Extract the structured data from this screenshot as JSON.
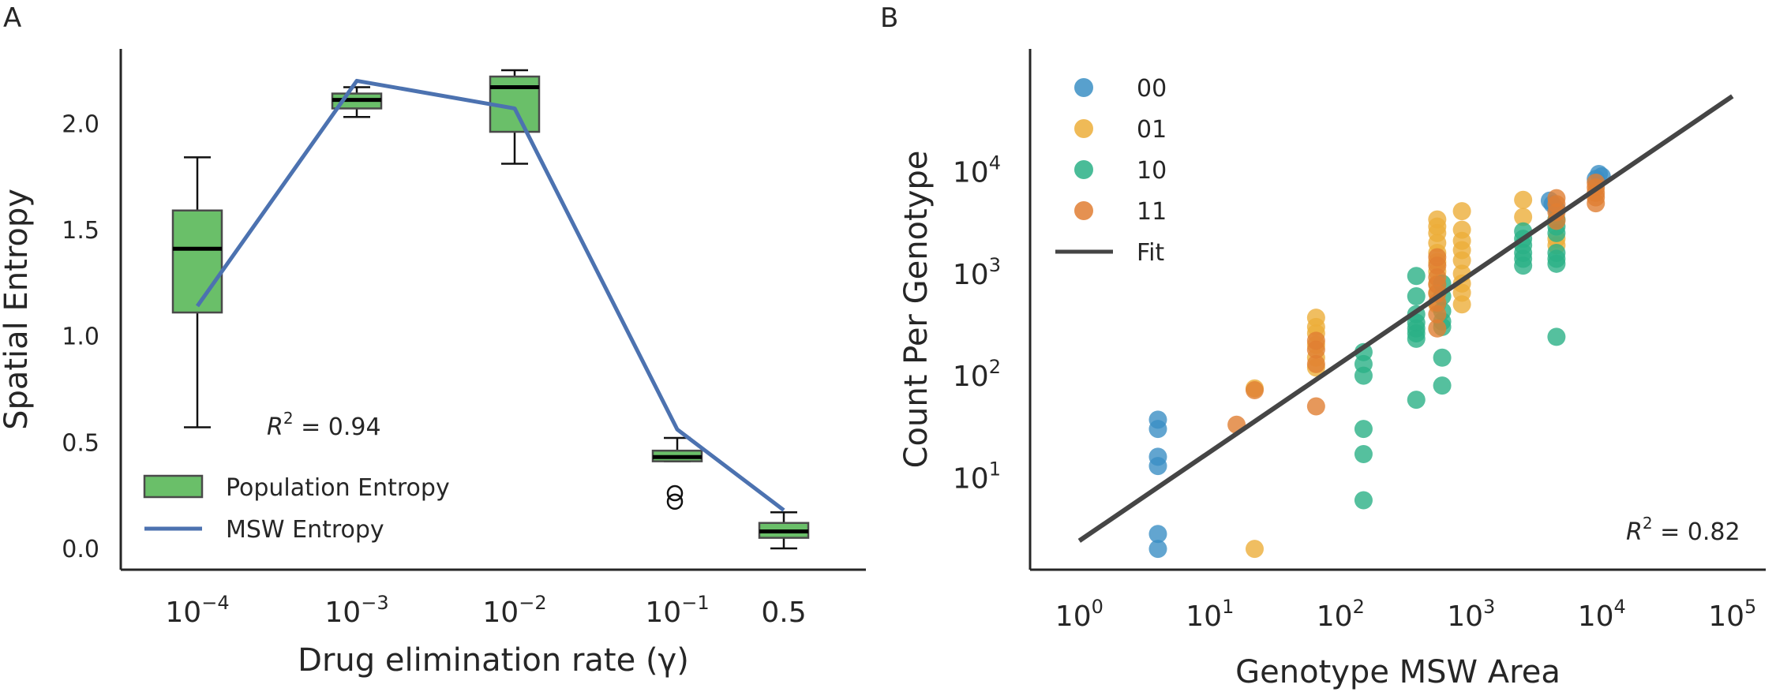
{
  "panel_labels": {
    "a": "A",
    "b": "B"
  },
  "chart_data": [
    {
      "type": "box",
      "panel": "A",
      "xlabel": "Drug elimination rate (γ)",
      "ylabel": "Spatial Entropy",
      "ylim": [
        -0.1,
        2.35
      ],
      "categories": [
        {
          "base": "10",
          "exp": "−4"
        },
        {
          "base": "10",
          "exp": "−3"
        },
        {
          "base": "10",
          "exp": "−2"
        },
        {
          "base": "10",
          "exp": "−1"
        },
        {
          "base": "0.5",
          "exp": ""
        }
      ],
      "yticks": [
        "0.0",
        "0.5",
        "1.0",
        "1.5",
        "2.0"
      ],
      "ytick_values": [
        0,
        0.5,
        1.0,
        1.5,
        2.0
      ],
      "boxes": [
        {
          "whislo": 0.57,
          "q1": 1.11,
          "med": 1.41,
          "q3": 1.59,
          "whishi": 1.84,
          "fliers": []
        },
        {
          "whislo": 2.03,
          "q1": 2.07,
          "med": 2.11,
          "q3": 2.14,
          "whishi": 2.17,
          "fliers": []
        },
        {
          "whislo": 1.81,
          "q1": 1.96,
          "med": 2.17,
          "q3": 2.22,
          "whishi": 2.25,
          "fliers": []
        },
        {
          "whislo": 0.41,
          "q1": 0.41,
          "med": 0.43,
          "q3": 0.46,
          "whishi": 0.52,
          "fliers": [
            0.22,
            0.26
          ]
        },
        {
          "whislo": 0.0,
          "q1": 0.05,
          "med": 0.08,
          "q3": 0.12,
          "whishi": 0.17,
          "fliers": []
        }
      ],
      "msw_line": [
        1.14,
        2.2,
        2.07,
        0.56,
        0.18
      ],
      "legend": {
        "box": "Population Entropy",
        "line": "MSW Entropy"
      },
      "annotation": {
        "prefix": "R",
        "sup": "2",
        "value": " = 0.94"
      },
      "colors": {
        "box": "#6abf69",
        "box_edge": "#4a4a4a",
        "line": "#4c72b0"
      }
    },
    {
      "type": "scatter",
      "panel": "B",
      "xlabel": "Genotype MSW Area",
      "ylabel": "Count Per Genotype",
      "xscale": "log",
      "yscale": "log",
      "xlim": [
        0.42,
        180000
      ],
      "ylim": [
        1.25,
        160000
      ],
      "xticks": [
        {
          "base": "10",
          "exp": "0",
          "v": 1
        },
        {
          "base": "10",
          "exp": "1",
          "v": 10
        },
        {
          "base": "10",
          "exp": "2",
          "v": 100
        },
        {
          "base": "10",
          "exp": "3",
          "v": 1000
        },
        {
          "base": "10",
          "exp": "4",
          "v": 10000
        },
        {
          "base": "10",
          "exp": "5",
          "v": 100000
        }
      ],
      "yticks": [
        {
          "base": "10",
          "exp": "1",
          "v": 10
        },
        {
          "base": "10",
          "exp": "2",
          "v": 100
        },
        {
          "base": "10",
          "exp": "3",
          "v": 1000
        },
        {
          "base": "10",
          "exp": "4",
          "v": 10000
        }
      ],
      "series": [
        {
          "name": "00",
          "color": "#3b8fc4",
          "points": [
            [
              4,
              37
            ],
            [
              4,
              30
            ],
            [
              4,
              16
            ],
            [
              4,
              13
            ],
            [
              4,
              2.8
            ],
            [
              4,
              2.0
            ],
            [
              4000,
              5200
            ],
            [
              4200,
              4800
            ],
            [
              4500,
              4300
            ],
            [
              9500,
              9500
            ],
            [
              10000,
              9000
            ],
            [
              9000,
              8500
            ]
          ]
        },
        {
          "name": "01",
          "color": "#ecae3a",
          "points": [
            [
              22,
              2.0
            ],
            [
              22,
              75
            ],
            [
              65,
              370
            ],
            [
              65,
              300
            ],
            [
              65,
              260
            ],
            [
              65,
              200
            ],
            [
              65,
              150
            ],
            [
              65,
              120
            ],
            [
              550,
              3400
            ],
            [
              550,
              2900
            ],
            [
              550,
              2500
            ],
            [
              550,
              2000
            ],
            [
              550,
              1600
            ],
            [
              550,
              1300
            ],
            [
              550,
              1050
            ],
            [
              550,
              800
            ],
            [
              550,
              650
            ],
            [
              550,
              500
            ],
            [
              850,
              4100
            ],
            [
              850,
              2700
            ],
            [
              850,
              2100
            ],
            [
              850,
              1700
            ],
            [
              850,
              1350
            ],
            [
              850,
              1000
            ],
            [
              850,
              800
            ],
            [
              850,
              650
            ],
            [
              850,
              500
            ],
            [
              2500,
              5300
            ],
            [
              2500,
              3600
            ],
            [
              4500,
              2200
            ],
            [
              4500,
              1900
            ]
          ]
        },
        {
          "name": "10",
          "color": "#2ab086",
          "points": [
            [
              150,
              170
            ],
            [
              150,
              130
            ],
            [
              150,
              100
            ],
            [
              150,
              30
            ],
            [
              150,
              17
            ],
            [
              150,
              6
            ],
            [
              380,
              950
            ],
            [
              380,
              600
            ],
            [
              380,
              400
            ],
            [
              380,
              330
            ],
            [
              380,
              290
            ],
            [
              380,
              260
            ],
            [
              380,
              230
            ],
            [
              380,
              58
            ],
            [
              600,
              800
            ],
            [
              600,
              600
            ],
            [
              600,
              430
            ],
            [
              600,
              340
            ],
            [
              600,
              300
            ],
            [
              600,
              150
            ],
            [
              600,
              80
            ],
            [
              2500,
              2600
            ],
            [
              2500,
              2200
            ],
            [
              2500,
              1900
            ],
            [
              2500,
              1600
            ],
            [
              2500,
              1400
            ],
            [
              2500,
              1200
            ],
            [
              4500,
              3400
            ],
            [
              4500,
              2900
            ],
            [
              4500,
              2500
            ],
            [
              4500,
              1600
            ],
            [
              4500,
              1400
            ],
            [
              4500,
              1250
            ],
            [
              4500,
              240
            ]
          ]
        },
        {
          "name": "11",
          "color": "#e07e32",
          "points": [
            [
              16,
              33
            ],
            [
              22,
              72
            ],
            [
              65,
              220
            ],
            [
              65,
              180
            ],
            [
              65,
              130
            ],
            [
              65,
              50
            ],
            [
              550,
              1450
            ],
            [
              550,
              1200
            ],
            [
              550,
              920
            ],
            [
              550,
              780
            ],
            [
              550,
              640
            ],
            [
              550,
              520
            ],
            [
              550,
              400
            ],
            [
              550,
              290
            ],
            [
              4500,
              5500
            ],
            [
              4500,
              4800
            ],
            [
              4500,
              4000
            ],
            [
              4500,
              3300
            ],
            [
              9000,
              7800
            ],
            [
              9000,
              7000
            ],
            [
              9000,
              6200
            ],
            [
              9000,
              5600
            ],
            [
              9000,
              4900
            ]
          ]
        }
      ],
      "fit_line": {
        "name": "Fit",
        "color": "#454545",
        "points": [
          [
            1,
            2.4
          ],
          [
            100000,
            55000
          ]
        ]
      },
      "annotation": {
        "prefix": "R",
        "sup": "2",
        "value": " = 0.82"
      }
    }
  ]
}
